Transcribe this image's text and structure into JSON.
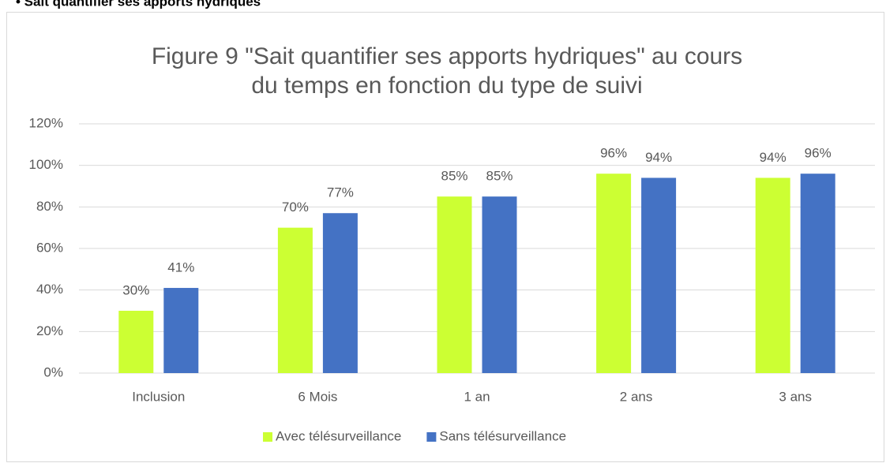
{
  "header": "• Sait quantifier ses apports hydriques",
  "chart_data": {
    "type": "bar",
    "title": [
      "Figure 9 \"Sait quantifier ses apports hydriques\" au cours",
      "du temps en fonction du type de suivi"
    ],
    "categories": [
      "Inclusion",
      "6 Mois",
      "1 an",
      "2 ans",
      "3 ans"
    ],
    "series": [
      {
        "name": "Avec télésurveillance",
        "color": "#ccff33",
        "values": [
          30,
          70,
          85,
          96,
          94
        ],
        "value_labels": [
          "30%",
          "70%",
          "85%",
          "96%",
          "94%"
        ]
      },
      {
        "name": "Sans télésurveillance",
        "color": "#4472c4",
        "values": [
          41,
          77,
          85,
          94,
          96
        ],
        "value_labels": [
          "41%",
          "77%",
          "85%",
          "94%",
          "96%"
        ]
      }
    ],
    "ylim": [
      0,
      120
    ],
    "yticks": [
      {
        "value": 0,
        "label": "0%"
      },
      {
        "value": 20,
        "label": "20%"
      },
      {
        "value": 40,
        "label": "40%"
      },
      {
        "value": 60,
        "label": "60%"
      },
      {
        "value": 80,
        "label": "80%"
      },
      {
        "value": 100,
        "label": "100%"
      },
      {
        "value": 120,
        "label": "120%"
      }
    ],
    "grid": true,
    "legend": "bottom"
  }
}
